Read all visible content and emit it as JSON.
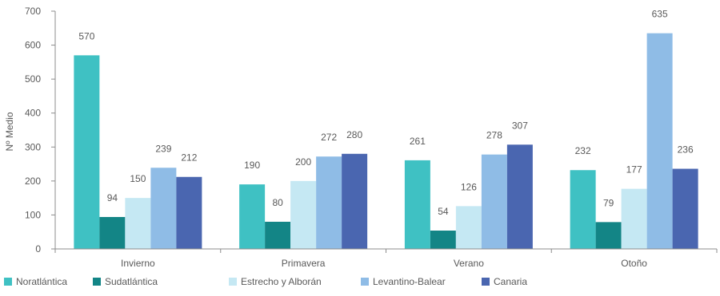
{
  "chart_data": {
    "type": "bar",
    "title": "",
    "xlabel": "",
    "ylabel": "Nº Medio",
    "ylim": [
      0,
      700
    ],
    "yticks": [
      0,
      100,
      200,
      300,
      400,
      500,
      600,
      700
    ],
    "grid": false,
    "legend": "bottom",
    "categories": [
      "Invierno",
      "Primavera",
      "Verano",
      "Otoño"
    ],
    "series": [
      {
        "name": "Noratlántica",
        "color": "#3FC1C3",
        "values": [
          570,
          190,
          261,
          232
        ]
      },
      {
        "name": "Sudatlántica",
        "color": "#138586",
        "values": [
          94,
          80,
          54,
          79
        ]
      },
      {
        "name": "Estrecho y Alborán",
        "color": "#C5E8F3",
        "values": [
          150,
          200,
          126,
          177
        ]
      },
      {
        "name": "Levantino-Balear",
        "color": "#8FBCE6",
        "values": [
          239,
          272,
          278,
          635
        ]
      },
      {
        "name": "Canaria",
        "color": "#4A66B0",
        "values": [
          212,
          280,
          307,
          236
        ]
      }
    ]
  }
}
